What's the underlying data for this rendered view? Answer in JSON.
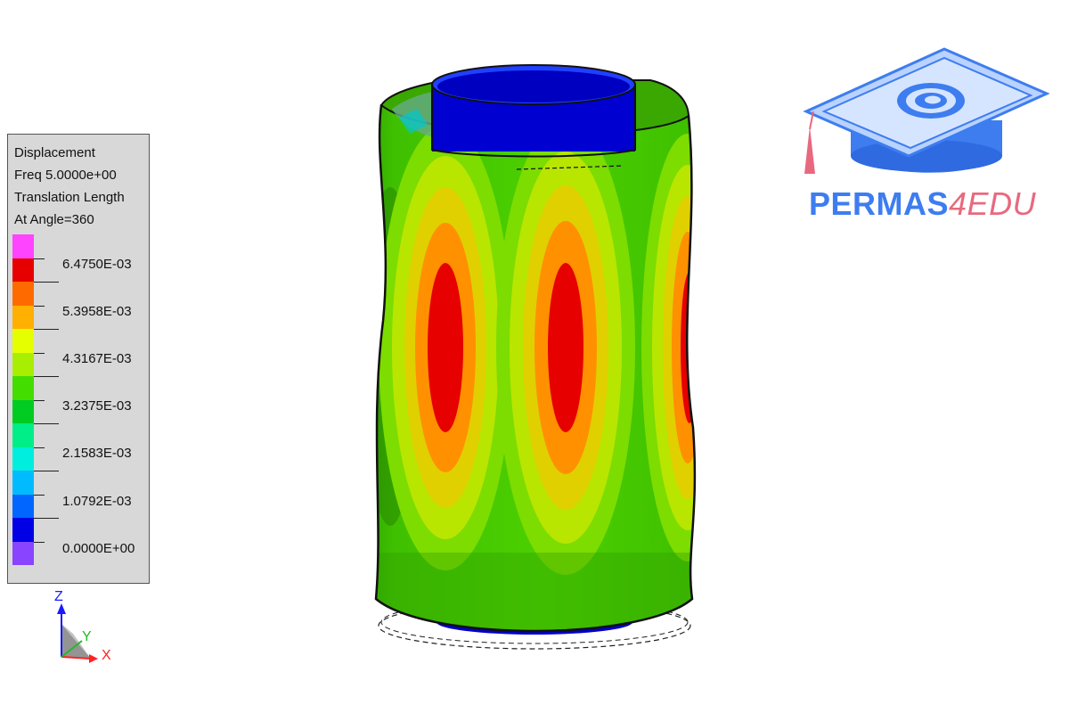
{
  "legend": {
    "title_lines": [
      "Displacement",
      "Freq 5.0000e+00",
      "Translation Length",
      "At Angle=360"
    ],
    "colors": [
      "#ff44ff",
      "#e60000",
      "#ff6a00",
      "#ffb000",
      "#e6ff00",
      "#a8ee00",
      "#44dd00",
      "#00cc22",
      "#00ee88",
      "#00eedd",
      "#00bbff",
      "#0066ff",
      "#0000e6",
      "#8844ff"
    ],
    "labels": [
      "6.4750E-03",
      "5.3958E-03",
      "4.3167E-03",
      "3.2375E-03",
      "2.1583E-03",
      "1.0792E-03",
      "0.0000E+00"
    ]
  },
  "axes": {
    "z": "Z",
    "y": "Y",
    "x": "X",
    "z_color": "#1a1aff",
    "y_color": "#22bb22",
    "x_color": "#ff2222"
  },
  "logo": {
    "part1": "PERMAS",
    "part2": "4EDU",
    "blue": "#3d7df0",
    "pink": "#e8697f"
  }
}
